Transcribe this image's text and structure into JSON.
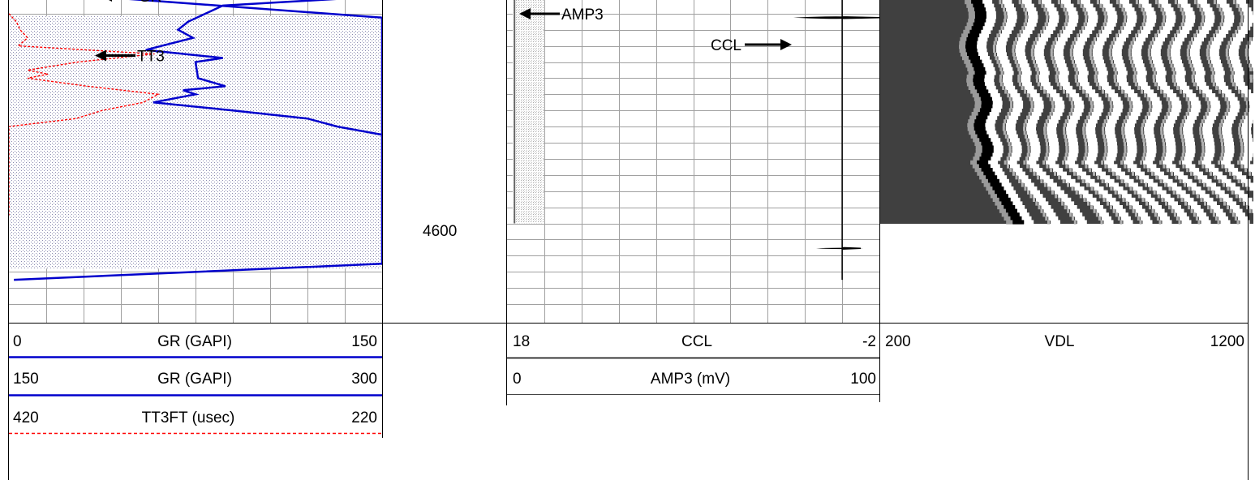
{
  "chart_data": {
    "type": "line",
    "title": "",
    "depth": {
      "label": "4600",
      "value": 4600,
      "visible_range_ft": [
        4571,
        4611
      ],
      "major_tick_ft": 10,
      "minor_tick_ft": 2
    },
    "tracks": [
      {
        "name": "track-1",
        "grid": "linear",
        "curves": [
          {
            "mnemonic": "GR",
            "unit": "GAPI",
            "header": "GR (GAPI)",
            "left_scale": "0",
            "right_scale": "150",
            "color": "#0000cc",
            "style": "solid",
            "samples": [
              [
                4571,
                2
              ],
              [
                4572,
                8
              ],
              [
                4573,
                40
              ],
              [
                4575.5,
                150
              ],
              [
                4591,
                150
              ],
              [
                4606,
                150
              ],
              [
                4608,
                2
              ]
            ]
          },
          {
            "mnemonic": "GR",
            "unit": "GAPI",
            "header": "GR (GAPI)",
            "left_scale": "150",
            "right_scale": "300",
            "color": "#0000cc",
            "style": "solid",
            "samples": [
              [
                4571,
                300
              ],
              [
                4573,
                292
              ],
              [
                4574,
                236
              ],
              [
                4576,
                222
              ],
              [
                4577,
                218
              ],
              [
                4578,
                224
              ],
              [
                4579.5,
                205
              ],
              [
                4580.5,
                236
              ],
              [
                4581,
                225
              ],
              [
                4583,
                226
              ],
              [
                4584,
                237
              ],
              [
                4584.5,
                220
              ],
              [
                4585,
                225
              ],
              [
                4586,
                208
              ],
              [
                4587,
                240
              ],
              [
                4588,
                270
              ],
              [
                4589,
                282
              ],
              [
                4590,
                300
              ]
            ]
          },
          {
            "mnemonic": "TT3FT",
            "unit": "usec",
            "header": "TT3FT (usec)",
            "left_scale": "420",
            "right_scale": "220",
            "color": "#ff0000",
            "style": "dashed",
            "samples": [
              [
                4575,
                420
              ],
              [
                4576,
                416
              ],
              [
                4577,
                414
              ],
              [
                4578,
                410
              ],
              [
                4579,
                415
              ],
              [
                4580,
                342
              ],
              [
                4581,
                383
              ],
              [
                4582,
                410
              ],
              [
                4582.5,
                399
              ],
              [
                4583,
                410
              ],
              [
                4584,
                378
              ],
              [
                4585,
                340
              ],
              [
                4586,
                348
              ],
              [
                4587,
                370
              ],
              [
                4588,
                384
              ],
              [
                4589,
                420
              ],
              [
                4600,
                420
              ]
            ]
          }
        ],
        "annotations": [
          {
            "text": "GR",
            "curve": "GR"
          },
          {
            "text": "TT3",
            "curve": "TT3FT"
          }
        ]
      },
      {
        "name": "track-2",
        "grid": "linear",
        "curves": [
          {
            "mnemonic": "CCL",
            "header": "CCL",
            "unit": "",
            "left_scale": "18",
            "right_scale": "-2",
            "color": "#000000",
            "style": "solid",
            "samples": [
              [
                4571,
                0
              ],
              [
                4575.4,
                0
              ],
              [
                4575.5,
                -2
              ],
              [
                4575.6,
                0
              ],
              [
                4604,
                0
              ],
              [
                4604.1,
                -1
              ],
              [
                4604.2,
                0
              ],
              [
                4608,
                0
              ]
            ]
          },
          {
            "mnemonic": "AMP3",
            "header": "AMP3 (mV)",
            "unit": "mV",
            "left_scale": "0",
            "right_scale": "100",
            "color": "#666666",
            "style": "solid",
            "samples": [
              [
                4571,
                2
              ],
              [
                4580,
                2
              ],
              [
                4590,
                2
              ],
              [
                4601,
                2
              ]
            ]
          }
        ],
        "annotations": [
          {
            "text": "AMP3",
            "curve": "AMP3"
          },
          {
            "text": "CCL",
            "curve": "CCL"
          }
        ]
      },
      {
        "name": "track-3",
        "grid": "none",
        "curves": [
          {
            "mnemonic": "VDL",
            "header": "VDL",
            "unit": "",
            "left_scale": "200",
            "right_scale": "1200",
            "type": "variable-density",
            "range_ft": [
              4571,
              4601
            ]
          }
        ]
      }
    ]
  },
  "colors": {
    "gr": "#0000cc",
    "tt3": "#ff0000",
    "ccl": "#000000",
    "amp3": "#666666",
    "grid": "#a0a0a0",
    "vdl_background": "#404040"
  }
}
